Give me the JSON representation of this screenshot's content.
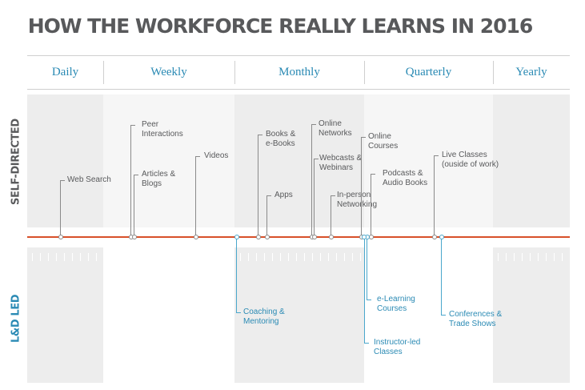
{
  "title": "HOW THE WORKFORCE REALLY LEARNS IN 2016",
  "frequencies": [
    "Daily",
    "Weekly",
    "Monthly",
    "Quarterly",
    "Yearly"
  ],
  "side_labels": {
    "self_directed": "SELF-DIRECTED",
    "ld_led": "L&D LED"
  },
  "self_directed_items": [
    "Web Search",
    "Peer\nInteractions",
    "Articles &\nBlogs",
    "Videos",
    "Books &\ne-Books",
    "Apps",
    "Online\nNetworks",
    "Webcasts &\nWebinars",
    "In-person\nNetworking",
    "Online\nCourses",
    "Podcasts &\nAudio Books",
    "Live Classes\n(ouside of work)"
  ],
  "ld_led_items": [
    "Coaching &\nMentoring",
    "e-Learning\nCourses",
    "Instructor-led\nClasses",
    "Conferences &\nTrade Shows"
  ],
  "colors": {
    "axis": "#d8502a",
    "accent": "#2a8ab4",
    "text": "#58595b"
  }
}
